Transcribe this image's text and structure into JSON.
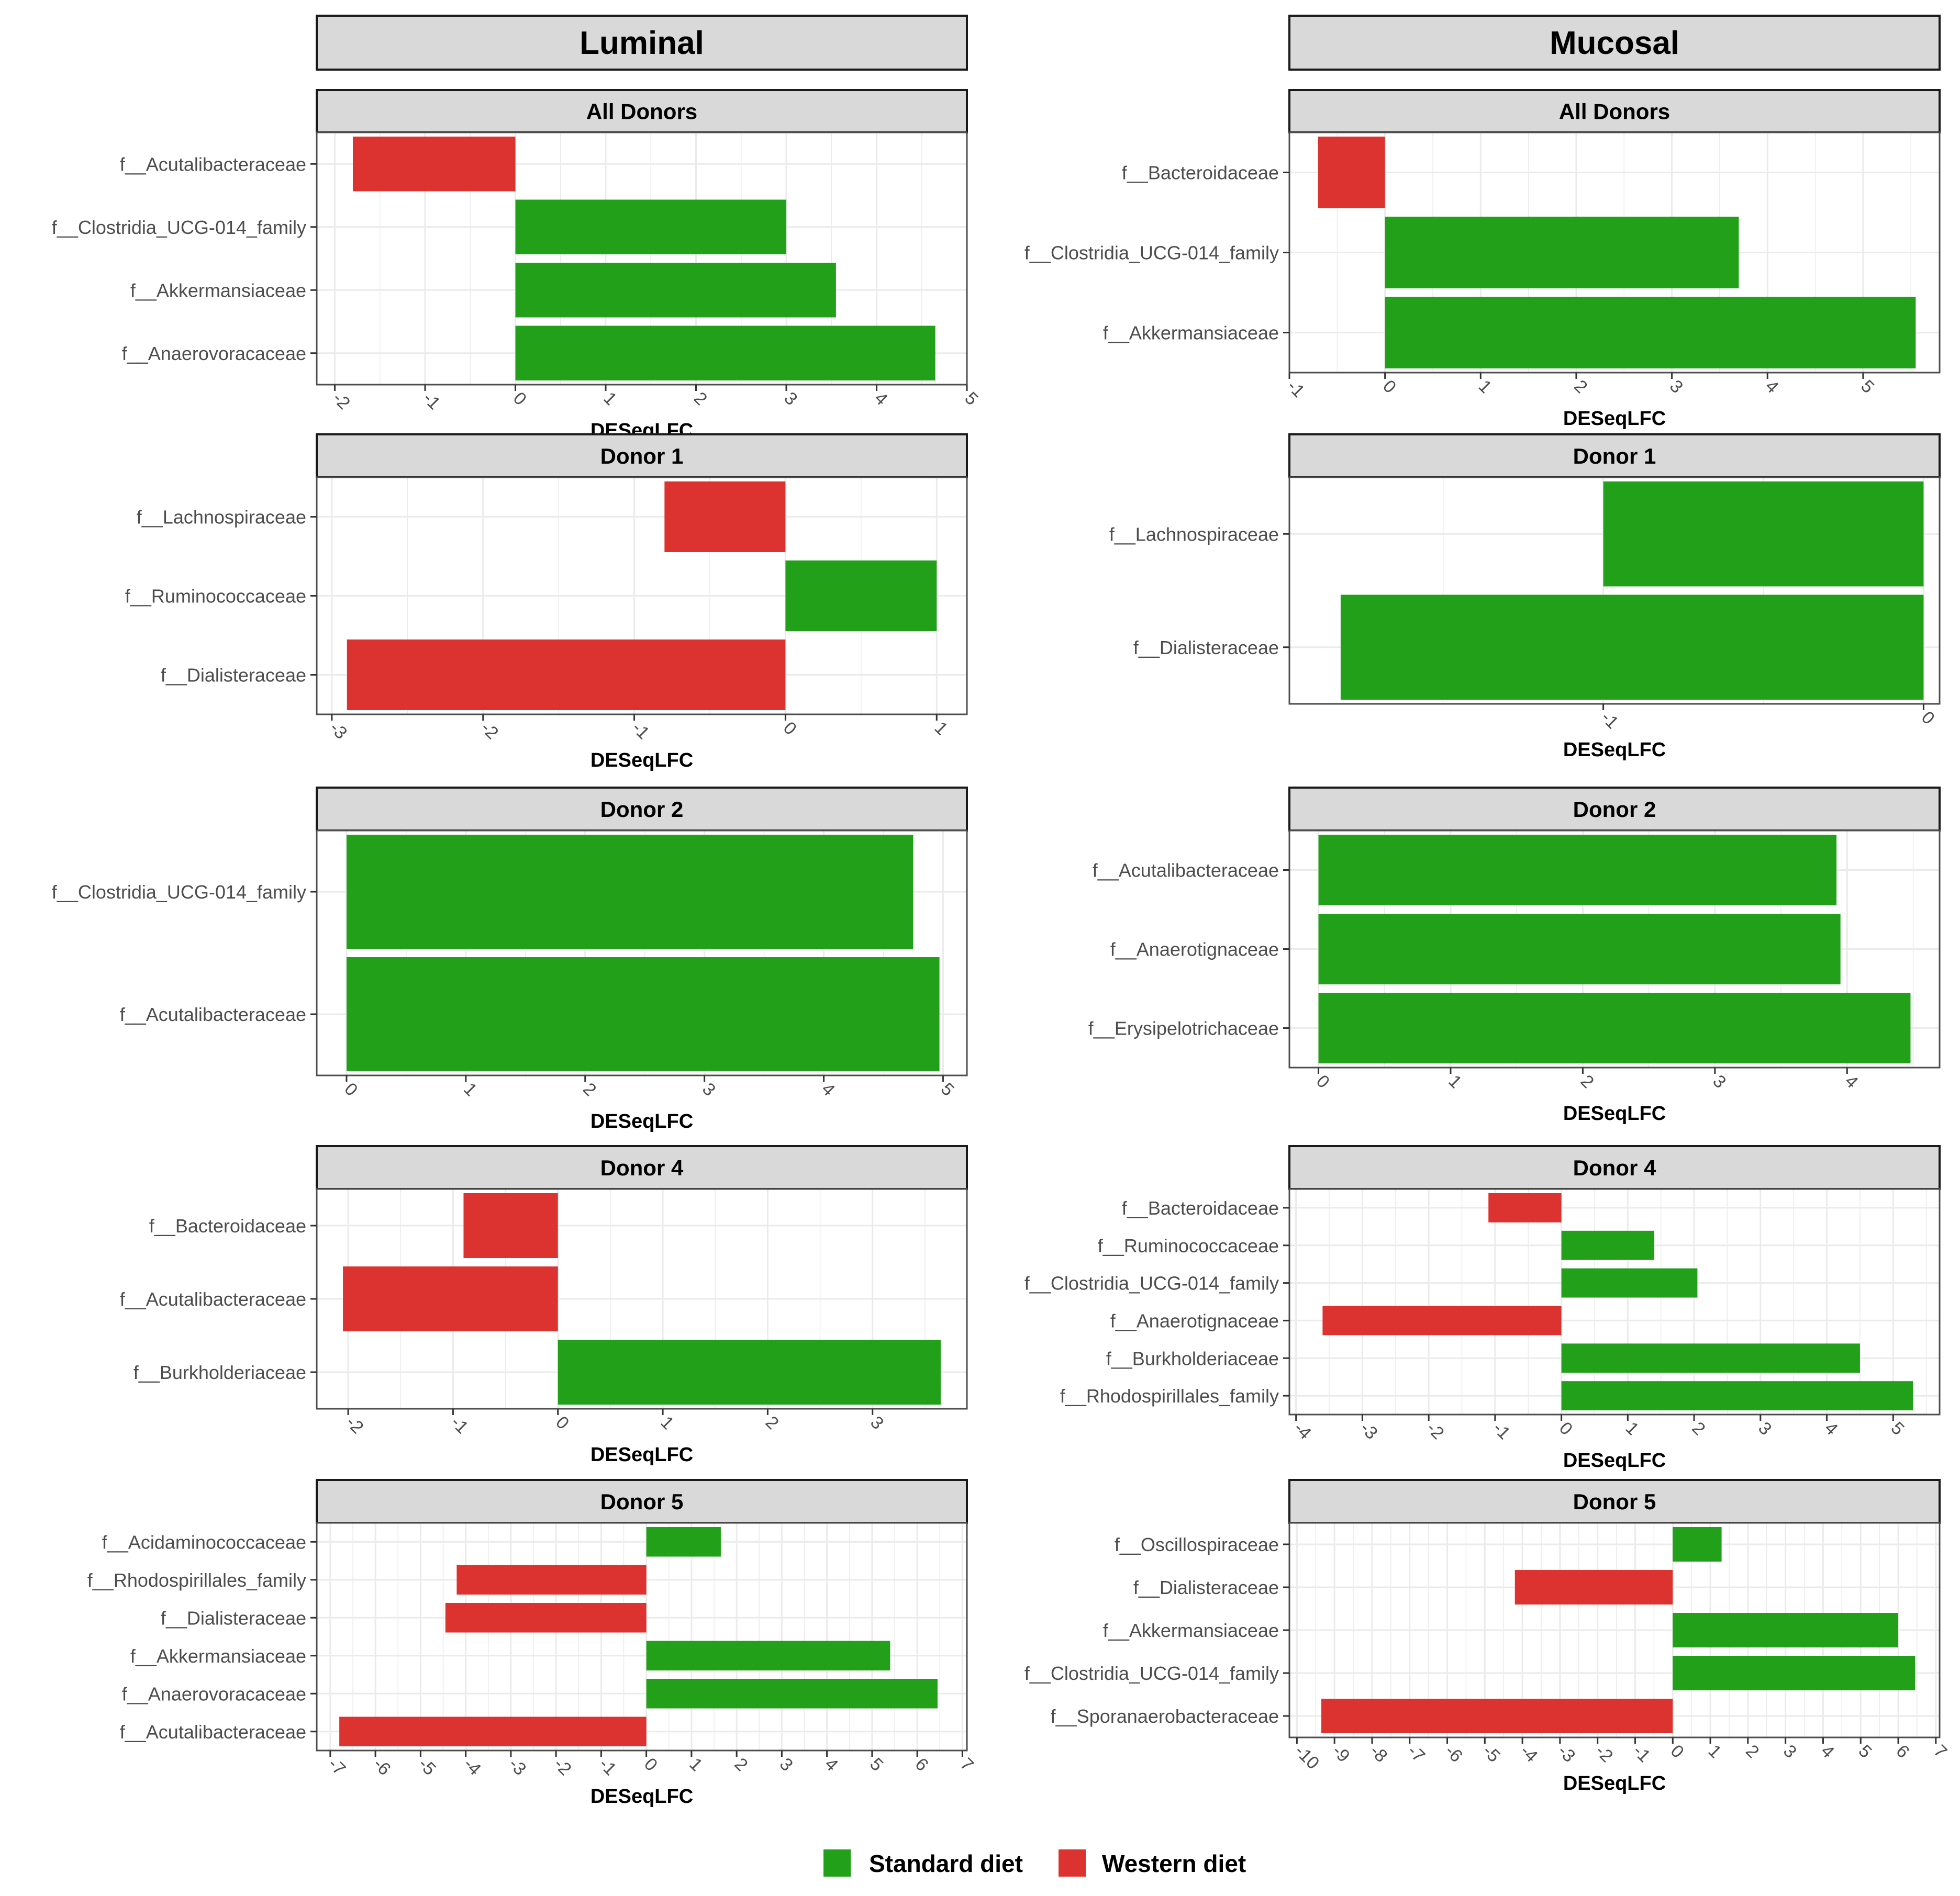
{
  "columns": [
    {
      "id": "luminal",
      "title": "Luminal"
    },
    {
      "id": "mucosal",
      "title": "Mucosal"
    }
  ],
  "xlabel": "DESeqLFC",
  "colors": {
    "standard": "#22a01a",
    "western": "#dc3330",
    "strip": "#d9d9d9",
    "grid": "#ebebeb",
    "panel_border": "#4d4d4d"
  },
  "legend": [
    {
      "label": "Standard diet",
      "color": "#22a01a"
    },
    {
      "label": "Western diet",
      "color": "#dc3330"
    }
  ],
  "chart_data": [
    {
      "type": "bar",
      "column": "Luminal",
      "title": "All Donors",
      "xlabel": "DESeqLFC",
      "xlim": [
        -2.2,
        5.0
      ],
      "xticks": [
        -2,
        -1,
        0,
        1,
        2,
        3,
        4,
        5
      ],
      "categories": [
        "f__Acutalibacteraceae",
        "f__Clostridia_UCG-014_family",
        "f__Akkermansiaceae",
        "f__Anaerovoracaceae"
      ],
      "values": [
        -1.8,
        3.0,
        3.55,
        4.65
      ],
      "diet": [
        "western",
        "standard",
        "standard",
        "standard"
      ]
    },
    {
      "type": "bar",
      "column": "Luminal",
      "title": "Donor 1",
      "xlabel": "DESeqLFC",
      "xlim": [
        -3.1,
        1.2
      ],
      "xticks": [
        -3,
        -2,
        -1,
        0,
        1
      ],
      "categories": [
        "f__Lachnospiraceae",
        "f__Ruminococcaceae",
        "f__Dialisteraceae"
      ],
      "values": [
        -0.8,
        1.0,
        -2.9
      ],
      "diet": [
        "western",
        "standard",
        "western"
      ]
    },
    {
      "type": "bar",
      "column": "Luminal",
      "title": "Donor 2",
      "xlabel": "DESeqLFC",
      "xlim": [
        -0.25,
        5.2
      ],
      "xticks": [
        0,
        1,
        2,
        3,
        4,
        5
      ],
      "categories": [
        "f__Clostridia_UCG-014_family",
        "f__Acutalibacteraceae"
      ],
      "values": [
        4.75,
        4.97
      ],
      "diet": [
        "standard",
        "standard"
      ]
    },
    {
      "type": "bar",
      "column": "Luminal",
      "title": "Donor 4",
      "xlabel": "DESeqLFC",
      "xlim": [
        -2.3,
        3.9
      ],
      "xticks": [
        -2,
        -1,
        0,
        1,
        2,
        3
      ],
      "categories": [
        "f__Bacteroidaceae",
        "f__Acutalibacteraceae",
        "f__Burkholderiaceae"
      ],
      "values": [
        -0.9,
        -2.05,
        3.65
      ],
      "diet": [
        "western",
        "western",
        "standard"
      ]
    },
    {
      "type": "bar",
      "column": "Luminal",
      "title": "Donor 5",
      "xlabel": "DESeqLFC",
      "xlim": [
        -7.3,
        7.1
      ],
      "xticks": [
        -7,
        -6,
        -5,
        -4,
        -3,
        -2,
        -1,
        0,
        1,
        2,
        3,
        4,
        5,
        6,
        7
      ],
      "categories": [
        "f__Acidaminococcaceae",
        "f__Rhodospirillales_family",
        "f__Dialisteraceae",
        "f__Akkermansiaceae",
        "f__Anaerovoracaceae",
        "f__Acutalibacteraceae"
      ],
      "values": [
        1.65,
        -4.2,
        -4.45,
        5.4,
        6.45,
        -6.8
      ],
      "diet": [
        "standard",
        "western",
        "western",
        "standard",
        "standard",
        "western"
      ]
    },
    {
      "type": "bar",
      "column": "Mucosal",
      "title": "All Donors",
      "xlabel": "DESeqLFC",
      "xlim": [
        -1.0,
        5.8
      ],
      "xticks": [
        -1,
        0,
        1,
        2,
        3,
        4,
        5
      ],
      "categories": [
        "f__Bacteroidaceae",
        "f__Clostridia_UCG-014_family",
        "f__Akkermansiaceae"
      ],
      "values": [
        -0.7,
        3.7,
        5.55
      ],
      "diet": [
        "western",
        "standard",
        "standard"
      ]
    },
    {
      "type": "bar",
      "column": "Mucosal",
      "title": "Donor 1",
      "xlabel": "DESeqLFC",
      "xlim": [
        -1.98,
        0.05
      ],
      "xticks": [
        -1,
        0
      ],
      "categories": [
        "f__Lachnospiraceae",
        "f__Dialisteraceae"
      ],
      "values": [
        -1.0,
        -1.82
      ],
      "diet": [
        "standard",
        "standard"
      ]
    },
    {
      "type": "bar",
      "column": "Mucosal",
      "title": "Donor 2",
      "xlabel": "DESeqLFC",
      "xlim": [
        -0.22,
        4.7
      ],
      "xticks": [
        0,
        1,
        2,
        3,
        4
      ],
      "categories": [
        "f__Acutalibacteraceae",
        "f__Anaerotignaceae",
        "f__Erysipelotrichaceae"
      ],
      "values": [
        3.92,
        3.95,
        4.48
      ],
      "diet": [
        "standard",
        "standard",
        "standard"
      ]
    },
    {
      "type": "bar",
      "column": "Mucosal",
      "title": "Donor 4",
      "xlabel": "DESeqLFC",
      "xlim": [
        -4.1,
        5.7
      ],
      "xticks": [
        -4,
        -3,
        -2,
        -1,
        0,
        1,
        2,
        3,
        4,
        5
      ],
      "categories": [
        "f__Bacteroidaceae",
        "f__Ruminococcaceae",
        "f__Clostridia_UCG-014_family",
        "f__Anaerotignaceae",
        "f__Burkholderiaceae",
        "f__Rhodospirillales_family"
      ],
      "values": [
        -1.1,
        1.4,
        2.05,
        -3.6,
        4.5,
        5.3
      ],
      "diet": [
        "western",
        "standard",
        "standard",
        "western",
        "standard",
        "standard"
      ]
    },
    {
      "type": "bar",
      "column": "Mucosal",
      "title": "Donor 5",
      "xlabel": "DESeqLFC",
      "xlim": [
        -10.2,
        7.1
      ],
      "xticks": [
        -10,
        -9,
        -8,
        -7,
        -6,
        -5,
        -4,
        -3,
        -2,
        -1,
        0,
        1,
        2,
        3,
        4,
        5,
        6,
        7
      ],
      "categories": [
        "f__Oscillospiraceae",
        "f__Dialisteraceae",
        "f__Akkermansiaceae",
        "f__Clostridia_UCG-014_family",
        "f__Sporanaerobacteraceae"
      ],
      "values": [
        1.3,
        -4.2,
        6.0,
        6.45,
        -9.35
      ],
      "diet": [
        "standard",
        "western",
        "standard",
        "standard",
        "western"
      ]
    }
  ]
}
